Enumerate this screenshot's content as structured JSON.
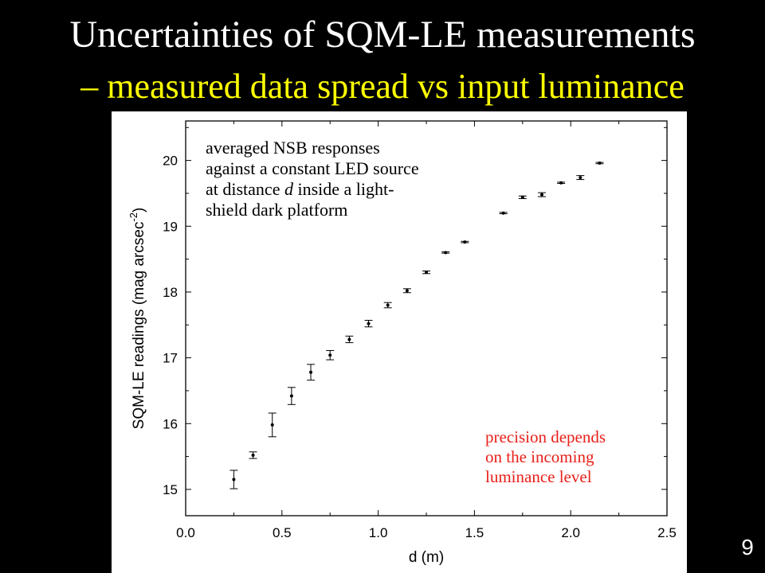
{
  "slide": {
    "title_line1": "Uncertainties of SQM-LE measurements",
    "title_line2": "– measured data spread vs input luminance",
    "slide_number": "9",
    "colors": {
      "background": "#000000",
      "title": "#ffffff",
      "subtitle": "#ffff00",
      "precision_note": "#e8201a"
    }
  },
  "chart_data": {
    "type": "scatter",
    "xlabel": "d (m)",
    "ylabel_main": "SQM-LE readings (mag arcsec",
    "ylabel_sup": "-2",
    "ylabel_end": ")",
    "xlim": [
      0.0,
      2.5
    ],
    "ylim": [
      14.6,
      20.6
    ],
    "x_ticks": [
      0.0,
      0.5,
      1.0,
      1.5,
      2.0,
      2.5
    ],
    "x_tick_labels": [
      "0.0",
      "0.5",
      "1.0",
      "1.5",
      "2.0",
      "2.5"
    ],
    "y_ticks": [
      15,
      16,
      17,
      18,
      19,
      20
    ],
    "y_tick_labels": [
      "15",
      "16",
      "17",
      "18",
      "19",
      "20"
    ],
    "grid": false,
    "series": [
      {
        "error_bars": true,
        "x": [
          0.25,
          0.35,
          0.45,
          0.55,
          0.65,
          0.75,
          0.85,
          0.95,
          1.05,
          1.15,
          1.25,
          1.35,
          1.45,
          1.65,
          1.75,
          1.85,
          1.95,
          2.05,
          2.15
        ],
        "y": [
          15.15,
          15.52,
          15.98,
          16.42,
          16.78,
          17.04,
          17.28,
          17.52,
          17.8,
          18.02,
          18.3,
          18.6,
          18.76,
          19.2,
          19.44,
          19.48,
          19.66,
          19.74,
          19.96
        ],
        "err": [
          0.14,
          0.05,
          0.18,
          0.13,
          0.12,
          0.07,
          0.05,
          0.05,
          0.04,
          0.03,
          0.02,
          0.01,
          0.01,
          0.01,
          0.02,
          0.03,
          0.01,
          0.03,
          0.01
        ]
      }
    ],
    "annotations": {
      "main": [
        "averaged NSB responses",
        "against a constant LED source",
        "at distance ",
        "d",
        " inside a light-",
        "shield dark platform"
      ],
      "precision": [
        "precision depends",
        "on the incoming",
        "luminance level"
      ]
    }
  }
}
